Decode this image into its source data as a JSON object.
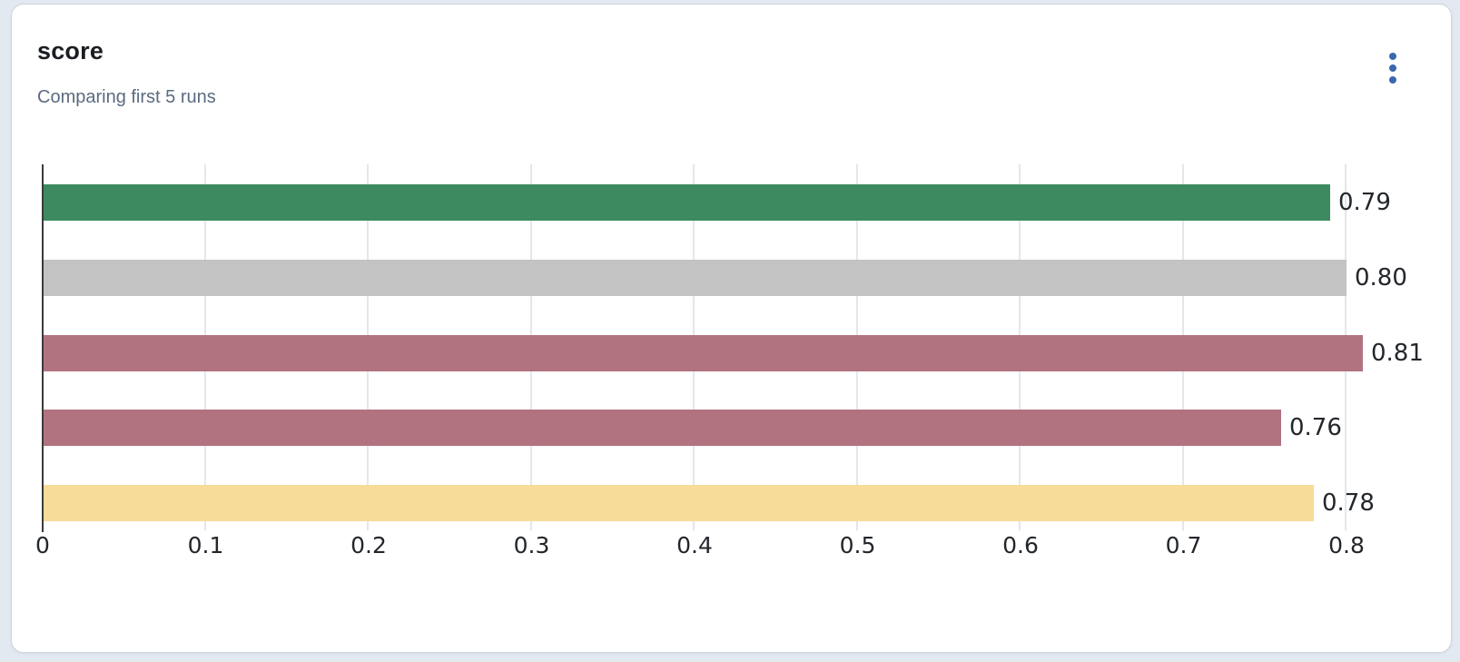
{
  "panel": {
    "title": "score",
    "subtitle": "Comparing first 5 runs",
    "menu_icon": "kebab-menu-icon",
    "accent_color": "#3a68ad"
  },
  "chart_data": {
    "type": "bar",
    "orientation": "horizontal",
    "title": "score",
    "subtitle": "Comparing first 5 runs",
    "bars": [
      {
        "value": 0.79,
        "label": "0.79",
        "color": "#3d8a60"
      },
      {
        "value": 0.8,
        "label": "0.80",
        "color": "#c3c3c3"
      },
      {
        "value": 0.81,
        "label": "0.81",
        "color": "#b17380"
      },
      {
        "value": 0.76,
        "label": "0.76",
        "color": "#b17380"
      },
      {
        "value": 0.78,
        "label": "0.78",
        "color": "#f7db99"
      }
    ],
    "xlim": [
      0,
      0.8
    ],
    "x_ticks": [
      {
        "value": 0,
        "label": "0"
      },
      {
        "value": 0.1,
        "label": "0.1"
      },
      {
        "value": 0.2,
        "label": "0.2"
      },
      {
        "value": 0.3,
        "label": "0.3"
      },
      {
        "value": 0.4,
        "label": "0.4"
      },
      {
        "value": 0.5,
        "label": "0.5"
      },
      {
        "value": 0.6,
        "label": "0.6"
      },
      {
        "value": 0.7,
        "label": "0.7"
      },
      {
        "value": 0.8,
        "label": "0.8"
      }
    ],
    "grid": "vertical",
    "legend": "none",
    "gridline_color": "#e2e7ed",
    "axis_color": "#3b3b3b",
    "label_color": "#23262b"
  }
}
